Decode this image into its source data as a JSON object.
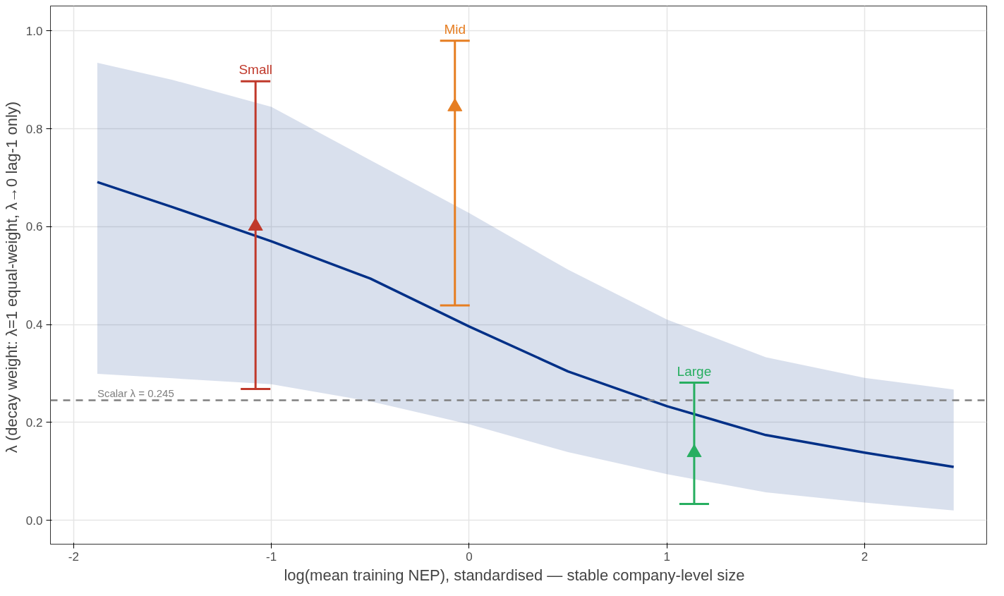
{
  "chart_data": {
    "type": "line",
    "xlabel": "log(mean training NEP), standardised  —  stable company-level size",
    "ylabel": "λ  (decay weight: λ=1 equal-weight, λ→0 lag-1 only)",
    "xlim": [
      -2.117,
      2.617
    ],
    "ylim": [
      -0.049,
      1.051
    ],
    "xticks": [
      -2,
      -1,
      0,
      1,
      2
    ],
    "yticks": [
      {
        "value": 0,
        "label": "0.0"
      },
      0.2,
      0.4,
      0.6,
      0.8,
      {
        "value": 1,
        "label": "1.0"
      }
    ],
    "grid": true,
    "ref_lines": [
      {
        "axis": "y",
        "value": 0.245,
        "label": "Scalar λ = 0.245",
        "color": "#808080",
        "line_style": "dashed"
      }
    ],
    "series": [
      {
        "color": "#003087",
        "x": [
          -1.88,
          -1.5,
          -1,
          -0.5,
          0,
          0.5,
          1,
          1.5,
          2,
          2.45
        ],
        "values": [
          0.691,
          0.64,
          0.57,
          0.494,
          0.396,
          0.304,
          0.233,
          0.174,
          0.138,
          0.109
        ],
        "lower": [
          0.299,
          0.29,
          0.278,
          0.243,
          0.196,
          0.139,
          0.094,
          0.057,
          0.036,
          0.02
        ],
        "upper": [
          0.935,
          0.9,
          0.845,
          0.736,
          0.628,
          0.512,
          0.41,
          0.333,
          0.291,
          0.267
        ]
      },
      {
        "type": "scatter",
        "name": "Small",
        "color": "#c0392b",
        "marker": "triangle",
        "x": [
          -1.08
        ],
        "values": [
          0.601
        ],
        "errors": [
          [
            0.268,
            0.897
          ]
        ]
      },
      {
        "type": "scatter",
        "name": "Mid",
        "color": "#e67e22",
        "marker": "triangle",
        "x": [
          -0.072
        ],
        "values": [
          0.845
        ],
        "errors": [
          [
            0.439,
            0.98
          ]
        ]
      },
      {
        "type": "scatter",
        "name": "Large",
        "color": "#27ae60",
        "marker": "triangle",
        "x": [
          1.138
        ],
        "values": [
          0.138
        ],
        "errors": [
          [
            0.033,
            0.281
          ]
        ]
      }
    ]
  }
}
